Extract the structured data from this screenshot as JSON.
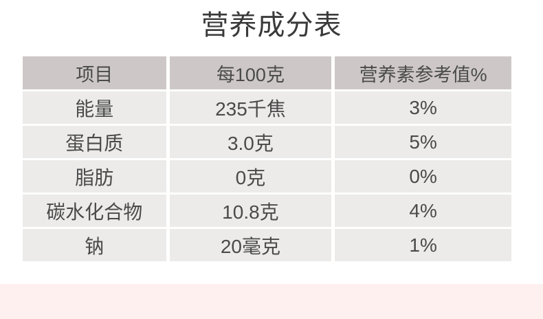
{
  "page": {
    "title": "营养成分表"
  },
  "colors": {
    "page-bg": "#ffffff",
    "header-bg": "#cdc8c7",
    "row-bg": "#ecebea",
    "text": "#4a4a4a",
    "title-text": "#3a3a3a",
    "footer-band": "#fdf0ef"
  },
  "table": {
    "columns": [
      "项目",
      "每100克",
      "营养素参考值%"
    ],
    "rows": [
      {
        "item": "能量",
        "per100g": "235千焦",
        "nrv": "3%"
      },
      {
        "item": "蛋白质",
        "per100g": "3.0克",
        "nrv": "5%"
      },
      {
        "item": "脂肪",
        "per100g": "0克",
        "nrv": "0%"
      },
      {
        "item": "碳水化合物",
        "per100g": "10.8克",
        "nrv": "4%"
      },
      {
        "item": "钠",
        "per100g": "20毫克",
        "nrv": "1%"
      }
    ]
  }
}
